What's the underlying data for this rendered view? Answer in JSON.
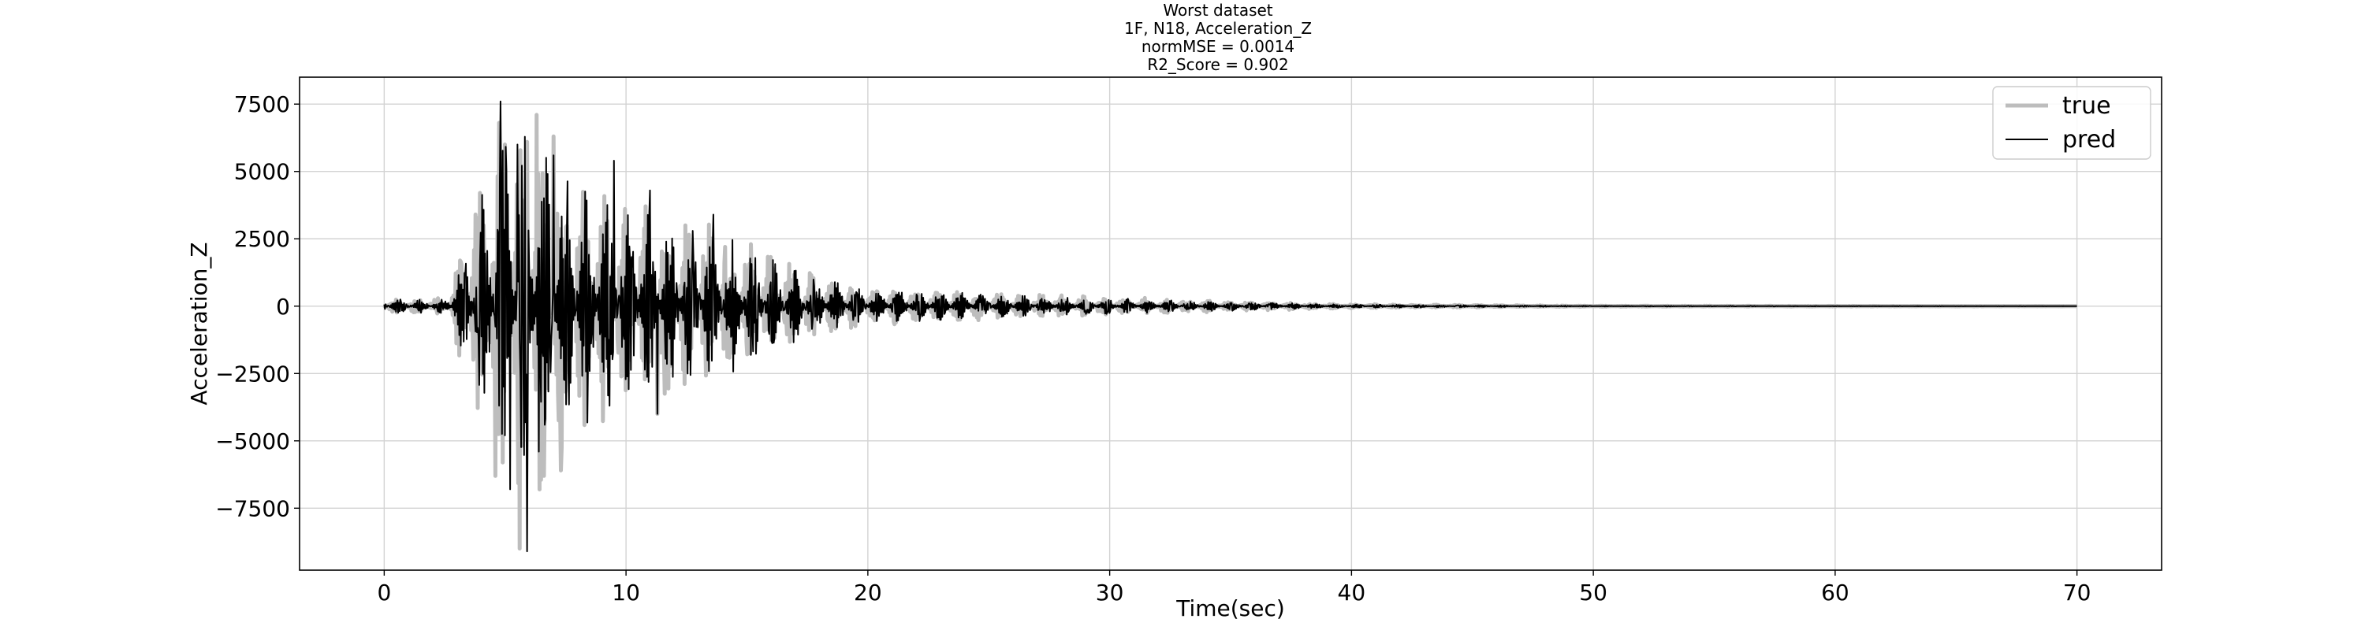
{
  "chart_data": {
    "type": "line",
    "title_lines": [
      "Worst dataset",
      "1F, N18, Acceleration_Z",
      "normMSE = 0.0014",
      "R2_Score = 0.902"
    ],
    "xlabel": "Time(sec)",
    "ylabel": "Acceleration_Z",
    "xlim": [
      -3.5,
      73.5
    ],
    "ylim": [
      -9800,
      8500
    ],
    "xticks": [
      0,
      10,
      20,
      30,
      40,
      50,
      60,
      70
    ],
    "xtick_labels": [
      "0",
      "10",
      "20",
      "30",
      "40",
      "50",
      "60",
      "70"
    ],
    "yticks": [
      7500,
      5000,
      2500,
      0,
      -2500,
      -5000,
      -7500
    ],
    "ytick_labels": [
      "7500",
      "5000",
      "2500",
      "0",
      "−2500",
      "−5000",
      "−7500"
    ],
    "grid": true,
    "legend": {
      "position": "top-right",
      "entries": [
        "true",
        "pred"
      ]
    },
    "duration": 70,
    "series": [
      {
        "name": "true",
        "color": "#bdbdbd",
        "envelope": [
          [
            0,
            300
          ],
          [
            2.5,
            300
          ],
          [
            3.0,
            1500
          ],
          [
            3.5,
            3500
          ],
          [
            4.0,
            5000
          ],
          [
            4.8,
            7200
          ],
          [
            5.5,
            7400
          ],
          [
            6.5,
            7300
          ],
          [
            7.5,
            5500
          ],
          [
            9.0,
            4500
          ],
          [
            10.0,
            4000
          ],
          [
            12.0,
            3500
          ],
          [
            14.0,
            3000
          ],
          [
            16.0,
            2000
          ],
          [
            18.0,
            1200
          ],
          [
            20.0,
            800
          ],
          [
            25.0,
            500
          ],
          [
            30.0,
            350
          ],
          [
            35.0,
            200
          ],
          [
            40.0,
            80
          ],
          [
            50.0,
            20
          ],
          [
            70.0,
            5
          ]
        ],
        "peaks": [
          [
            4.6,
            -6300
          ],
          [
            4.9,
            -5800
          ],
          [
            5.0,
            6000
          ],
          [
            5.6,
            -9000
          ],
          [
            5.9,
            6100
          ],
          [
            6.3,
            7100
          ],
          [
            6.6,
            -6300
          ],
          [
            7.0,
            6300
          ],
          [
            7.3,
            -6100
          ],
          [
            11.3,
            -4000
          ]
        ]
      },
      {
        "name": "pred",
        "color": "#000000",
        "envelope": [
          [
            0,
            300
          ],
          [
            2.5,
            250
          ],
          [
            3.0,
            1400
          ],
          [
            3.5,
            3000
          ],
          [
            4.0,
            4000
          ],
          [
            4.8,
            7000
          ],
          [
            5.5,
            7000
          ],
          [
            6.5,
            6800
          ],
          [
            7.5,
            5000
          ],
          [
            9.0,
            4200
          ],
          [
            10.0,
            3800
          ],
          [
            12.0,
            3200
          ],
          [
            14.0,
            2800
          ],
          [
            16.0,
            1800
          ],
          [
            18.0,
            1100
          ],
          [
            20.0,
            700
          ],
          [
            25.0,
            450
          ],
          [
            30.0,
            300
          ],
          [
            35.0,
            180
          ],
          [
            40.0,
            70
          ],
          [
            50.0,
            15
          ],
          [
            70.0,
            4
          ]
        ],
        "peaks": [
          [
            4.8,
            7600
          ],
          [
            5.2,
            -6800
          ],
          [
            5.5,
            6000
          ],
          [
            5.9,
            -9100
          ],
          [
            6.4,
            -5400
          ],
          [
            7.0,
            5600
          ],
          [
            9.5,
            5400
          ],
          [
            11.0,
            4300
          ],
          [
            11.3,
            -4000
          ],
          [
            13.6,
            3400
          ]
        ]
      }
    ]
  }
}
